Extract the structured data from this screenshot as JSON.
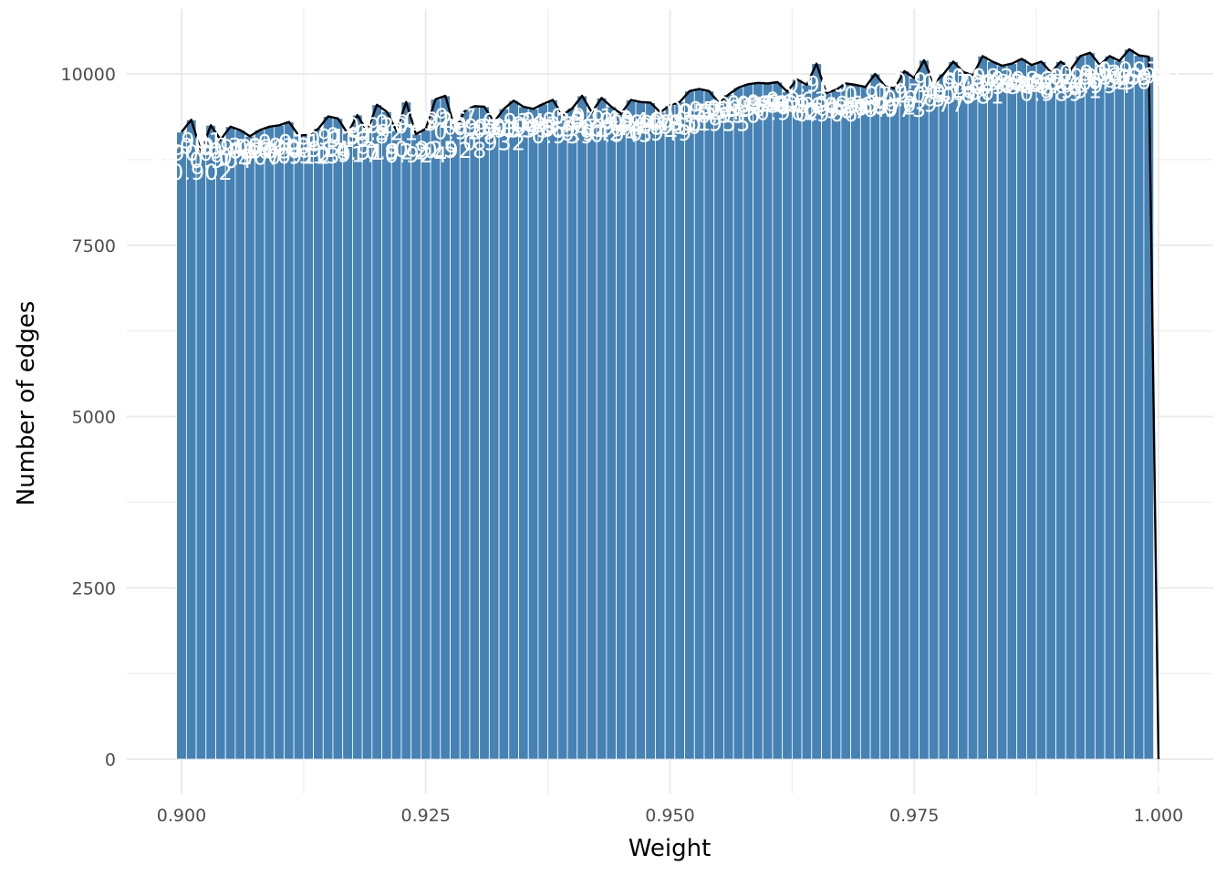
{
  "chart_data": {
    "type": "bar",
    "title": "",
    "xlabel": "Weight",
    "ylabel": "Number of edges",
    "xlim": [
      0.8975,
      1.0015
    ],
    "ylim": [
      -700,
      10600
    ],
    "x_ticks": [
      0.9,
      0.925,
      0.95,
      0.975,
      1.0
    ],
    "x_tick_labels": [
      "0.900",
      "0.925",
      "0.950",
      "0.975",
      "1.000"
    ],
    "y_ticks": [
      0,
      2500,
      5000,
      7500,
      10000
    ],
    "y_tick_labels": [
      "0",
      "2500",
      "5000",
      "7500",
      "10000"
    ],
    "grid": true,
    "legend": "none",
    "bin_width": 0.001,
    "x": [
      0.9,
      0.901,
      0.902,
      0.903,
      0.904,
      0.905,
      0.906,
      0.907,
      0.908,
      0.909,
      0.91,
      0.911,
      0.912,
      0.913,
      0.914,
      0.915,
      0.916,
      0.917,
      0.918,
      0.919,
      0.92,
      0.921,
      0.922,
      0.923,
      0.924,
      0.925,
      0.926,
      0.927,
      0.928,
      0.929,
      0.93,
      0.931,
      0.932,
      0.933,
      0.934,
      0.935,
      0.936,
      0.937,
      0.938,
      0.939,
      0.94,
      0.941,
      0.942,
      0.943,
      0.944,
      0.945,
      0.946,
      0.947,
      0.948,
      0.949,
      0.95,
      0.951,
      0.952,
      0.953,
      0.954,
      0.955,
      0.956,
      0.957,
      0.958,
      0.959,
      0.96,
      0.961,
      0.962,
      0.963,
      0.964,
      0.965,
      0.966,
      0.967,
      0.968,
      0.969,
      0.97,
      0.971,
      0.972,
      0.973,
      0.974,
      0.975,
      0.976,
      0.977,
      0.978,
      0.979,
      0.98,
      0.981,
      0.982,
      0.983,
      0.984,
      0.985,
      0.986,
      0.987,
      0.988,
      0.989,
      0.99,
      0.991,
      0.992,
      0.993,
      0.994,
      0.995,
      0.996,
      0.997,
      0.998,
      0.999,
      1.0
    ],
    "series": [
      {
        "values": [
          9150,
          9330,
          8870,
          9250,
          9040,
          9230,
          9180,
          9090,
          9180,
          9230,
          9250,
          9300,
          9100,
          9110,
          9200,
          9380,
          9350,
          9130,
          9400,
          9160,
          9550,
          9450,
          9170,
          9590,
          9120,
          9200,
          9630,
          9680,
          9190,
          9460,
          9530,
          9520,
          9300,
          9490,
          9610,
          9520,
          9490,
          9560,
          9620,
          9400,
          9500,
          9680,
          9440,
          9650,
          9520,
          9420,
          9620,
          9590,
          9580,
          9440,
          9540,
          9590,
          9750,
          9780,
          9750,
          9580,
          9700,
          9800,
          9850,
          9870,
          9860,
          9880,
          9740,
          9920,
          9840,
          10150,
          9720,
          9770,
          9860,
          9840,
          9810,
          10000,
          9820,
          9790,
          10040,
          9940,
          10200,
          9860,
          10000,
          10180,
          10030,
          9980,
          10260,
          10180,
          10120,
          10150,
          10220,
          10130,
          10180,
          10020,
          10180,
          10060,
          10260,
          10310,
          10130,
          10260,
          10190,
          10360,
          10270,
          10250,
          0
        ]
      }
    ],
    "bar_color": "#4682b4",
    "line_color": "#000000",
    "bar_labels": [
      "0.900",
      "0.901",
      "0.902",
      "0.903",
      "0.904",
      "0.905",
      "0.906",
      "0.907",
      "0.908",
      "0.909",
      "0.910",
      "0.911",
      "0.912",
      "0.913",
      "0.914",
      "0.915",
      "0.916",
      "0.917",
      "0.918",
      "0.919",
      "0.920",
      "0.921",
      "0.922",
      "0.923",
      "0.924",
      "0.925",
      "0.926",
      "0.927",
      "0.928",
      "0.929",
      "0.930",
      "0.931",
      "0.932",
      "0.933",
      "0.934",
      "0.935",
      "0.936",
      "0.937",
      "0.938",
      "0.939",
      "0.940",
      "0.941",
      "0.942",
      "0.943",
      "0.944",
      "0.945",
      "0.946",
      "0.947",
      "0.948",
      "0.949",
      "0.950",
      "0.951",
      "0.952",
      "0.953",
      "0.954",
      "0.955",
      "0.956",
      "0.957",
      "0.958",
      "0.959",
      "0.960",
      "0.961",
      "0.962",
      "0.963",
      "0.964",
      "0.965",
      "0.966",
      "0.967",
      "0.968",
      "0.969",
      "0.970",
      "0.971",
      "0.972",
      "0.973",
      "0.974",
      "0.975",
      "0.976",
      "0.977",
      "0.978",
      "0.979",
      "0.980",
      "0.981",
      "0.982",
      "0.983",
      "0.984",
      "0.985",
      "0.986",
      "0.987",
      "0.988",
      "0.989",
      "0.990",
      "0.991",
      "0.992",
      "0.993",
      "0.994",
      "0.995",
      "0.996",
      "0.997",
      "0.998",
      "0.999",
      "1.000"
    ]
  }
}
